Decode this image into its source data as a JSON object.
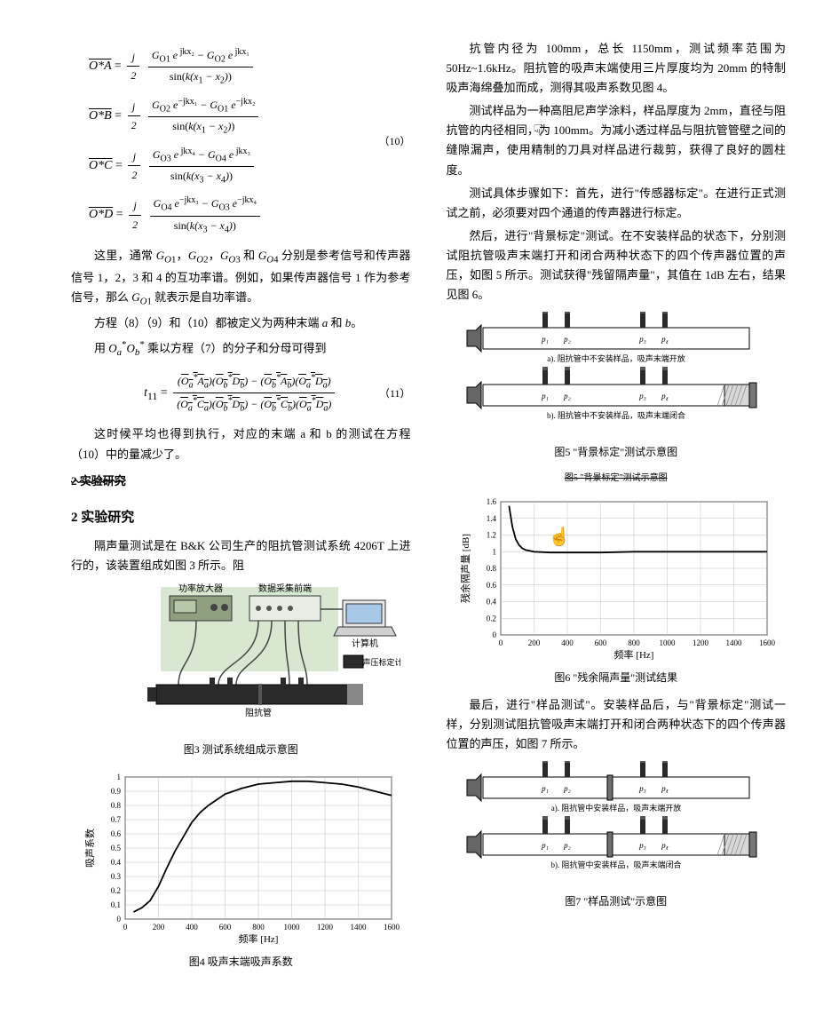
{
  "equations": {
    "eq10_no": "（10）",
    "eq11_no": "（11）",
    "eq_OA_lhs": "O*A",
    "eq_OB_lhs": "O*B",
    "eq_OC_lhs": "O*C",
    "eq_OD_lhs": "O*D",
    "eq_t11_lhs": "t",
    "eq_t11_sub": "11"
  },
  "left_texts": {
    "p1": "这里，通常 G_{O1}，G_{O2}，G_{O3} 和 G_{O4} 分别是参考信号和传声器信号 1，2，3 和 4 的互功率谱。例如，如果传声器信号 1 作为参考信号，那么 G_{O1} 就表示是自功率谱。",
    "p2": "方程（8）（9）和（10）都被定义为两种末端 a 和 b。",
    "p3": "用 O*_a O*_b 乘以方程（7）的分子和分母可得到",
    "p4": "这时候平均也得到执行，对应的末端 a 和 b 的测试在方程（10）中的量减少了。",
    "p5_strike": "2 实验研究"
  },
  "section2": {
    "title": "2 实验研究",
    "p1": "隔声量测试是在 B&K 公司生产的阻抗管测试系统 4206T 上进行的，该装置组成如图 3 所示。阻"
  },
  "fig3": {
    "label_amp": "功率放大器",
    "label_front": "数据采集前端",
    "label_pc": "计算机",
    "label_cal": "声压标定计",
    "label_tube": "阻抗管",
    "caption": "图3  测试系统组成示意图",
    "bg_box": "#d8e8d0",
    "amp_color": "#8fa080",
    "tube_color": "#2a2a2a",
    "wire_color": "#444444"
  },
  "fig4": {
    "caption": "图4  吸声末端吸声系数",
    "xlabel": "频率 [Hz]",
    "ylabel": "吸声系数",
    "x_ticks": [
      0,
      200,
      400,
      600,
      800,
      1000,
      1200,
      1400,
      1600
    ],
    "y_ticks": [
      0,
      0.1,
      0.2,
      0.3,
      0.4,
      0.5,
      0.6,
      0.7,
      0.8,
      0.9,
      1.0
    ],
    "line_color": "#000000",
    "grid_color": "#c0c0c0",
    "bg_color": "#ffffff",
    "data_x": [
      50,
      100,
      150,
      200,
      250,
      300,
      350,
      400,
      450,
      500,
      600,
      700,
      800,
      900,
      1000,
      1100,
      1200,
      1300,
      1400,
      1500,
      1600
    ],
    "data_y": [
      0.05,
      0.08,
      0.13,
      0.23,
      0.36,
      0.48,
      0.58,
      0.68,
      0.75,
      0.8,
      0.88,
      0.92,
      0.95,
      0.96,
      0.97,
      0.97,
      0.96,
      0.95,
      0.93,
      0.9,
      0.87
    ]
  },
  "right_texts": {
    "p1": "抗管内径为 100mm，总长 1150mm，测试频率范围为 50Hz~1.6kHz。阻抗管的吸声末端使用三片厚度均为 20mm 的特制吸声海绵叠加而成，测得其吸声系数见图 4。",
    "p2": "测试样品为一种高阻尼声学涂料，样品厚度为 2mm，直径与阻抗管的内径相同，为 100mm。为减小透过样品与阻抗管管壁之间的缝隙漏声，使用精制的刀具对样品进行裁剪，获得了良好的圆柱度。",
    "p3": "测试具体步骤如下：首先，进行\"传感器标定\"。在进行正式测试之前，必须要对四个通道的传声器进行标定。",
    "p4": "然后，进行\"背景标定\"测试。在不安装样品的状态下，分别测试阻抗管吸声末端打开和闭合两种状态下的四个传声器位置的声压，如图 5 所示。测试获得\"残留隔声量\"，其值在 1dB 左右，结果见图 6。",
    "p5": "最后，进行\"样品测试\"。安装样品后，与\"背景标定\"测试一样，分别测试阻抗管吸声末端打开和闭合两种状态下的四个传声器位置的声压，如图 7 所示。"
  },
  "fig5": {
    "caption": "图5  \"背景标定\"测试示意图",
    "sub_a": "a). 阻抗管中不安装样品，吸声末端开放",
    "sub_b": "b). 阻抗管中不安装样品，吸声末端闭合",
    "mic_labels": [
      "p₁",
      "p₂",
      "p₃",
      "p₄"
    ],
    "tube_fill": "#ffffff",
    "tube_stroke": "#000000",
    "mic_color": "#2a2a2a",
    "foam_color": "#d0d0d0",
    "end_block": "#999999"
  },
  "fig6": {
    "caption": "图6  \"残余隔声量\"测试结果",
    "title": "图5 \"背景标定\"测试示意图",
    "xlabel": "频率 [Hz]",
    "ylabel": "残余隔声量 [dB]",
    "x_ticks": [
      0,
      200,
      400,
      600,
      800,
      1000,
      1200,
      1400,
      1600
    ],
    "y_ticks": [
      0,
      0.2,
      0.4,
      0.6,
      0.8,
      1.0,
      1.2,
      1.4,
      1.6
    ],
    "line_color": "#000000",
    "grid_color": "#c0c0c0",
    "bg_color": "#ffffff",
    "data_x": [
      50,
      70,
      90,
      110,
      130,
      150,
      200,
      300,
      400,
      600,
      800,
      1000,
      1200,
      1400,
      1600
    ],
    "data_y": [
      1.55,
      1.3,
      1.15,
      1.08,
      1.04,
      1.02,
      1.0,
      0.99,
      0.99,
      0.99,
      1.0,
      1.0,
      1.0,
      1.0,
      1.0
    ]
  },
  "fig7": {
    "caption": "图7  \"样品测试\"示意图",
    "sub_a": "a). 阻抗管中安装样品，吸声末端开放",
    "sub_b": "b). 阻抗管中安装样品，吸声末端闭合",
    "mic_labels": [
      "p₁",
      "p₂",
      "p₃",
      "p₄"
    ],
    "sample_color": "#707070"
  },
  "cursor": {
    "glyph1": "☟",
    "glyph2": "☝"
  }
}
